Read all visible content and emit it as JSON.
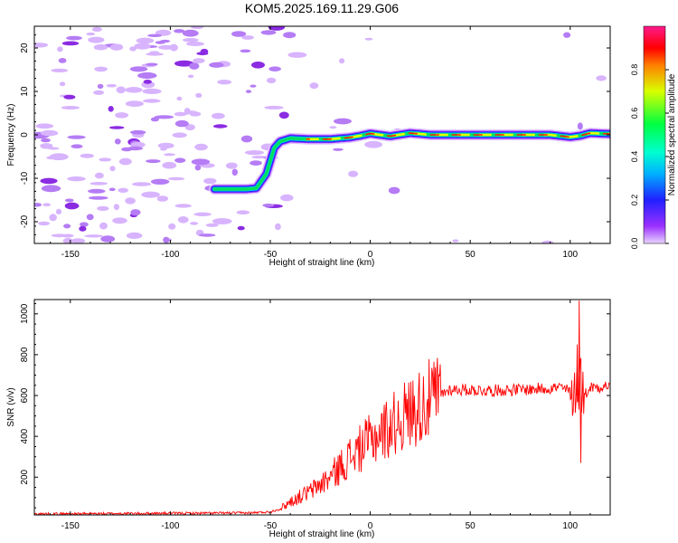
{
  "title": "KOM5.2025.169.11.29.G06",
  "chart_data": [
    {
      "type": "heatmap",
      "xlabel": "Height of straight line (km)",
      "ylabel": "Frequency (Hz)",
      "xlim": [
        -168,
        120
      ],
      "ylim": [
        -25,
        25
      ],
      "xticks": [
        -150,
        -100,
        -50,
        0,
        50,
        100
      ],
      "yticks": [
        -20,
        -10,
        0,
        10,
        20
      ],
      "colorbar": {
        "label": "Normalized spectral amplitude",
        "range": [
          0,
          1
        ],
        "ticks": [
          "0.0",
          "0.2",
          "0.4",
          "0.6",
          "0.8"
        ],
        "colormap": "rainbow (white -> violet -> blue -> cyan -> green -> yellow -> red -> pink)"
      },
      "ridge": {
        "x": [
          -78,
          -70,
          -62,
          -57,
          -55,
          -52,
          -50,
          -48,
          -45,
          -40,
          -30,
          -20,
          -10,
          -5,
          0,
          5,
          10,
          20,
          30,
          50,
          70,
          90,
          100,
          105,
          110,
          120
        ],
        "y": [
          -12.5,
          -12.5,
          -12.5,
          -12.3,
          -11,
          -9,
          -6,
          -3,
          -1.5,
          -0.8,
          -1,
          -1,
          -0.6,
          -0.2,
          0.3,
          0,
          -0.3,
          0.4,
          0,
          0,
          0,
          0,
          -0.5,
          -0.2,
          0.4,
          0.2
        ]
      }
    },
    {
      "type": "line",
      "xlabel": "Height of straight line (km)",
      "ylabel": "SNR (v/v)",
      "xlim": [
        -168,
        120
      ],
      "ylim": [
        15,
        1070
      ],
      "xticks": [
        -150,
        -100,
        -50,
        0,
        50,
        100
      ],
      "yticks": [
        200,
        400,
        600,
        800,
        1000
      ],
      "color": "#ff0000",
      "envelope": {
        "x": [
          -168,
          -60,
          -50,
          -45,
          -40,
          -30,
          -20,
          -10,
          0,
          10,
          20,
          30,
          40,
          60,
          80,
          95,
          100,
          103,
          105,
          107,
          110,
          120
        ],
        "y": [
          20,
          25,
          30,
          45,
          80,
          130,
          200,
          300,
          380,
          450,
          520,
          580,
          630,
          625,
          630,
          640,
          620,
          640,
          680,
          600,
          640,
          650
        ]
      },
      "spikes": [
        {
          "x": 103.5,
          "y": 850
        },
        {
          "x": 104.5,
          "y": 1065
        },
        {
          "x": 105.3,
          "y": 270
        }
      ]
    }
  ]
}
